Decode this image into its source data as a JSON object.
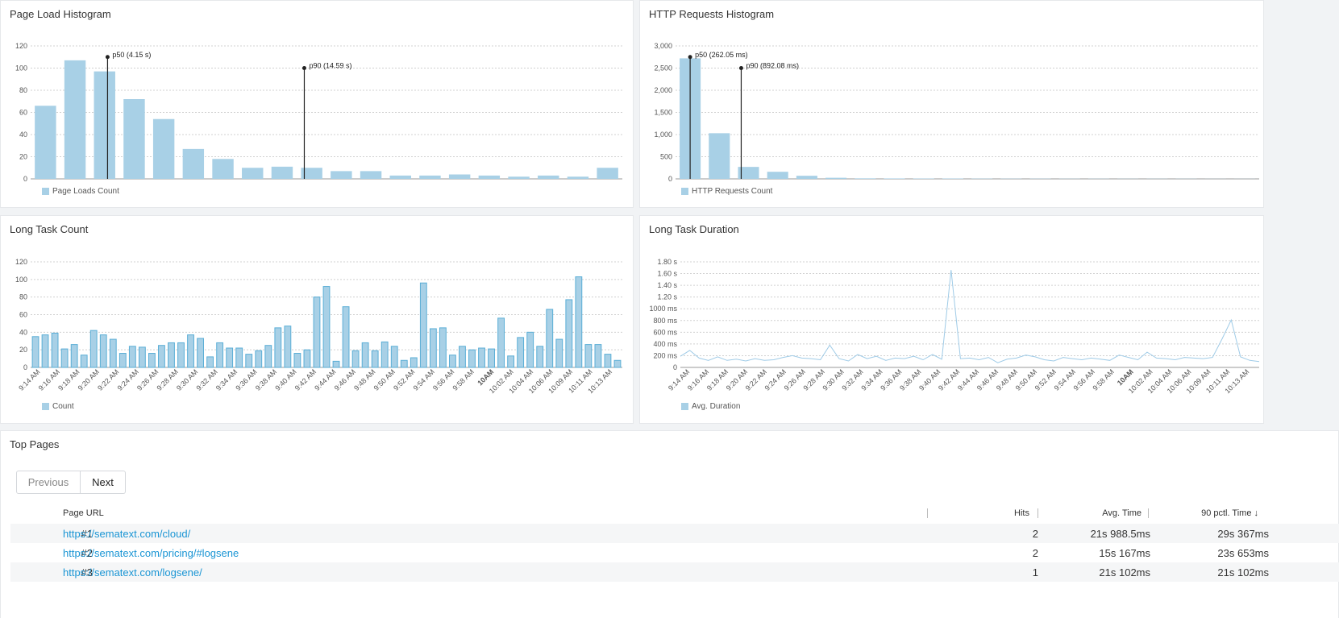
{
  "panels": {
    "page_load": {
      "title": "Page Load Histogram",
      "legend": "Page Loads Count",
      "annotations": [
        {
          "label": "p50 (4.15 s)",
          "x_index": 2.6,
          "y": 110
        },
        {
          "label": "p90 (14.59 s)",
          "x_index": 9.25,
          "y": 100
        }
      ]
    },
    "http_requests": {
      "title": "HTTP Requests Histogram",
      "legend": "HTTP Requests Count",
      "annotations": [
        {
          "label": "p50 (262.05 ms)",
          "x_index": 0.5,
          "y": 2750
        },
        {
          "label": "p90 (892.08 ms)",
          "x_index": 2.25,
          "y": 2500
        }
      ]
    },
    "long_task_count": {
      "title": "Long Task Count",
      "legend": "Count"
    },
    "long_task_duration": {
      "title": "Long Task Duration",
      "legend": "Avg. Duration"
    }
  },
  "chart_data": [
    {
      "id": "page_load",
      "type": "bar",
      "ylim": [
        0,
        120
      ],
      "yticks": [
        "0",
        "20",
        "40",
        "60",
        "80",
        "100",
        "120"
      ],
      "values": [
        66,
        107,
        97,
        72,
        54,
        27,
        18,
        10,
        11,
        10,
        7,
        7,
        3,
        3,
        4,
        3,
        2,
        3,
        2,
        10
      ]
    },
    {
      "id": "http_requests",
      "type": "bar",
      "ylim": [
        0,
        3000
      ],
      "yticks": [
        "0",
        "500",
        "1,000",
        "1,500",
        "2,000",
        "2,500",
        "3,000"
      ],
      "values": [
        2720,
        1030,
        270,
        160,
        70,
        25,
        12,
        10,
        8,
        8,
        6,
        5,
        5,
        4,
        4,
        3,
        3,
        3,
        2,
        2
      ]
    },
    {
      "id": "long_task_count",
      "type": "bar",
      "ylim": [
        0,
        120
      ],
      "yticks": [
        "0",
        "20",
        "40",
        "60",
        "80",
        "100",
        "120"
      ],
      "xticks": [
        "9:14 AM",
        "9:16 AM",
        "9:18 AM",
        "9:20 AM",
        "9:22 AM",
        "9:24 AM",
        "9:26 AM",
        "9:28 AM",
        "9:30 AM",
        "9:32 AM",
        "9:34 AM",
        "9:36 AM",
        "9:38 AM",
        "9:40 AM",
        "9:42 AM",
        "9:44 AM",
        "9:46 AM",
        "9:48 AM",
        "9:50 AM",
        "9:52 AM",
        "9:54 AM",
        "9:56 AM",
        "9:58 AM",
        "10AM",
        "10:02 AM",
        "10:04 AM",
        "10:06 AM",
        "10:09 AM",
        "10:11 AM",
        "10:13 AM"
      ],
      "values": [
        35,
        37,
        39,
        21,
        26,
        14,
        42,
        37,
        32,
        16,
        24,
        23,
        16,
        25,
        28,
        28,
        37,
        33,
        12,
        28,
        22,
        22,
        15,
        19,
        25,
        45,
        47,
        16,
        20,
        80,
        92,
        7,
        69,
        19,
        28,
        19,
        29,
        24,
        8,
        11,
        96,
        44,
        45,
        14,
        24,
        20,
        22,
        21,
        56,
        13,
        34,
        40,
        24,
        66,
        32,
        77,
        103,
        26,
        26,
        15,
        8
      ]
    },
    {
      "id": "long_task_duration",
      "type": "line",
      "ylim": [
        0,
        1800
      ],
      "yticks": [
        "0",
        "200 ms",
        "400 ms",
        "600 ms",
        "800 ms",
        "1000 ms",
        "1.20 s",
        "1.40 s",
        "1.60 s",
        "1.80 s"
      ],
      "xticks": [
        "9:14 AM",
        "9:16 AM",
        "9:18 AM",
        "9:20 AM",
        "9:22 AM",
        "9:24 AM",
        "9:26 AM",
        "9:28 AM",
        "9:30 AM",
        "9:32 AM",
        "9:34 AM",
        "9:36 AM",
        "9:38 AM",
        "9:40 AM",
        "9:42 AM",
        "9:44 AM",
        "9:46 AM",
        "9:48 AM",
        "9:50 AM",
        "9:52 AM",
        "9:54 AM",
        "9:56 AM",
        "9:58 AM",
        "10AM",
        "10:02 AM",
        "10:04 AM",
        "10:06 AM",
        "10:09 AM",
        "10:11 AM",
        "10:13 AM"
      ],
      "values": [
        190,
        290,
        160,
        120,
        180,
        120,
        140,
        110,
        150,
        120,
        130,
        170,
        200,
        160,
        150,
        130,
        380,
        150,
        110,
        220,
        150,
        190,
        120,
        160,
        150,
        190,
        130,
        220,
        140,
        1660,
        150,
        160,
        130,
        170,
        80,
        140,
        160,
        210,
        180,
        130,
        110,
        170,
        150,
        130,
        160,
        140,
        120,
        210,
        170,
        130,
        260,
        160,
        150,
        130,
        170,
        160,
        150,
        170,
        480,
        810,
        180,
        120,
        100
      ]
    }
  ],
  "top_pages": {
    "title": "Top Pages",
    "prev_label": "Previous",
    "next_label": "Next",
    "columns": {
      "url": "Page URL",
      "hits": "Hits",
      "avg": "Avg. Time",
      "p90": "90 pctl. Time ↓"
    },
    "rows": [
      {
        "idx": "#1",
        "url": "https://sematext.com/cloud/",
        "hits": "2",
        "avg": "21s 988.5ms",
        "p90": "29s 367ms"
      },
      {
        "idx": "#2",
        "url": "https://sematext.com/pricing/#logsene",
        "hits": "2",
        "avg": "15s 167ms",
        "p90": "23s 653ms"
      },
      {
        "idx": "#3",
        "url": "https://sematext.com/logsene/",
        "hits": "1",
        "avg": "21s 102ms",
        "p90": "21s 102ms"
      }
    ]
  },
  "colors": {
    "bar": "#a8d0e6",
    "bar_stroke": "#5aaed6",
    "line": "#9fcbe7",
    "grid": "#d0d0d0",
    "link": "#1a95d4"
  }
}
